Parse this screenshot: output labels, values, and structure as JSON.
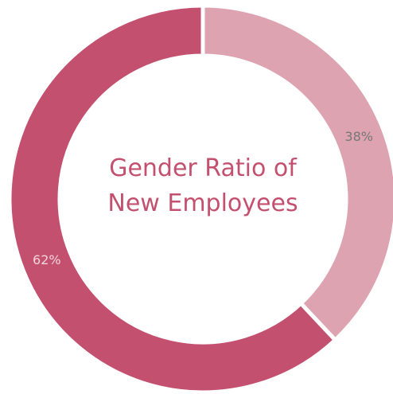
{
  "chart_data": {
    "type": "donut",
    "title": "Gender Ratio of New Employees",
    "values": [
      38,
      62
    ],
    "value_labels": [
      "38%",
      "62%"
    ],
    "colors": [
      "#dea3b0",
      "#c4506f"
    ],
    "label_colors": [
      "#777777",
      "#f3d4dc"
    ]
  }
}
